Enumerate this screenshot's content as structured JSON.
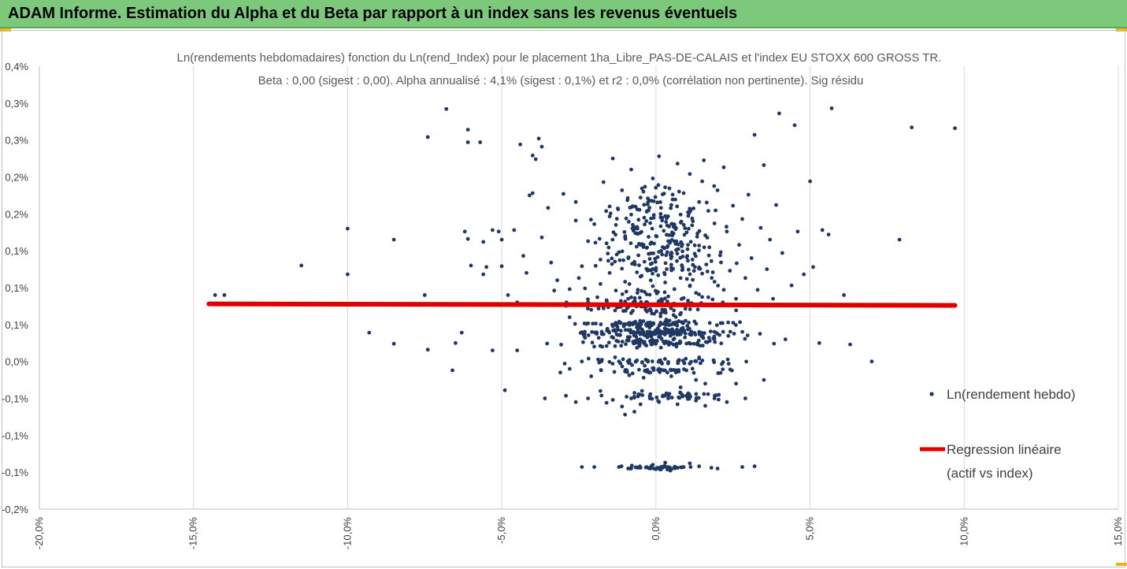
{
  "header": {
    "title": "ADAM Informe. Estimation du Alpha et du Beta par rapport à un index sans les revenus éventuels"
  },
  "colors": {
    "banner": "#7cc97c",
    "points": "#1f3864",
    "regression": "#e00000",
    "accent": "#f0b400"
  },
  "chart_data": {
    "type": "scatter",
    "title_line1": "Ln(rendements hebdomadaires) fonction du Ln(rend_Index)  pour le placement 1ha_Libre_PAS-DE-CALAIS et l'index EU STOXX 600 GROSS TR.",
    "title_line2": "Beta : 0,00 (sigest : 0,00).  Alpha annualisé : 4,1% (sigest : 0,1%) et r2 : 0,0% (corrélation non pertinente). Sig résidu",
    "xlim": [
      -20,
      15
    ],
    "ylim": [
      -0.2,
      0.4
    ],
    "x_ticks": [
      -20,
      -15,
      -10,
      -5,
      0,
      5,
      10,
      15
    ],
    "x_tick_labels": [
      "-20,0%",
      "-15,0%",
      "-10,0%",
      "-5,0%",
      "0,0%",
      "5,0%",
      "10,0%",
      "15,0%"
    ],
    "y_ticks": [
      0.4,
      0.35,
      0.3,
      0.25,
      0.2,
      0.15,
      0.1,
      0.05,
      0.0,
      -0.05,
      -0.1,
      -0.15,
      -0.2
    ],
    "y_tick_labels": [
      "0,4%",
      "0,3%",
      "0,3%",
      "0,2%",
      "0,2%",
      "0,1%",
      "0,1%",
      "0,1%",
      "0,0%",
      "-0,1%",
      "-0,1%",
      "-0,1%",
      "-0,2%"
    ],
    "grid": "vertical",
    "legend_position": "right",
    "series": [
      {
        "name": "Ln(rendement hebdo)",
        "type": "scatter"
      },
      {
        "name": "Regression linéaire\n(actif vs index)",
        "type": "line"
      }
    ],
    "regression": {
      "x": [
        -14.5,
        9.7
      ],
      "y": [
        0.078,
        0.076
      ]
    },
    "scatter_points": [
      {
        "x": -14.3,
        "y": 0.09
      },
      {
        "x": -14.0,
        "y": 0.09
      },
      {
        "x": -11.5,
        "y": 0.13
      },
      {
        "x": -10.0,
        "y": 0.18
      },
      {
        "x": -10.0,
        "y": 0.118
      },
      {
        "x": -9.3,
        "y": 0.039
      },
      {
        "x": -8.5,
        "y": 0.165
      },
      {
        "x": -8.5,
        "y": 0.024
      },
      {
        "x": -7.4,
        "y": 0.304
      },
      {
        "x": -7.4,
        "y": 0.016
      },
      {
        "x": -7.5,
        "y": 0.09
      },
      {
        "x": -6.8,
        "y": 0.342
      },
      {
        "x": -6.6,
        "y": -0.012
      },
      {
        "x": -6.5,
        "y": 0.025
      },
      {
        "x": -6.3,
        "y": 0.039
      },
      {
        "x": -6.2,
        "y": 0.176
      },
      {
        "x": -6.1,
        "y": 0.166
      },
      {
        "x": -6.1,
        "y": 0.314
      },
      {
        "x": -6.1,
        "y": 0.297
      },
      {
        "x": -6.0,
        "y": 0.13
      },
      {
        "x": -5.7,
        "y": 0.297
      },
      {
        "x": -5.6,
        "y": 0.162
      },
      {
        "x": -5.6,
        "y": 0.118
      },
      {
        "x": -5.5,
        "y": 0.128
      },
      {
        "x": -5.3,
        "y": 0.015
      },
      {
        "x": -5.3,
        "y": 0.178
      },
      {
        "x": -5.1,
        "y": 0.176
      },
      {
        "x": -5.0,
        "y": 0.129
      },
      {
        "x": -5.0,
        "y": 0.165
      },
      {
        "x": -4.9,
        "y": -0.039
      },
      {
        "x": -4.8,
        "y": 0.09
      },
      {
        "x": -4.6,
        "y": 0.178
      },
      {
        "x": -4.5,
        "y": 0.08
      },
      {
        "x": -4.5,
        "y": 0.015
      },
      {
        "x": -4.4,
        "y": 0.294
      },
      {
        "x": -4.3,
        "y": 0.143
      },
      {
        "x": -4.2,
        "y": 0.12
      },
      {
        "x": -4.1,
        "y": 0.225
      },
      {
        "x": -4.0,
        "y": 0.228
      },
      {
        "x": -4.0,
        "y": 0.279
      },
      {
        "x": -3.9,
        "y": 0.274
      },
      {
        "x": -3.8,
        "y": 0.302
      },
      {
        "x": -3.7,
        "y": 0.291
      },
      {
        "x": -3.7,
        "y": 0.168
      },
      {
        "x": -3.6,
        "y": -0.05
      },
      {
        "x": -3.5,
        "y": 0.208
      },
      {
        "x": -3.4,
        "y": 0.134
      },
      {
        "x": -3.3,
        "y": 0.096
      },
      {
        "x": -3.2,
        "y": 0.11
      },
      {
        "x": -3.0,
        "y": 0.227
      },
      {
        "x": -2.9,
        "y": 0.08
      },
      {
        "x": -2.8,
        "y": 0.06
      },
      {
        "x": -2.8,
        "y": 0.098
      },
      {
        "x": -2.6,
        "y": 0.216
      },
      {
        "x": -2.6,
        "y": 0.191
      },
      {
        "x": -2.5,
        "y": 0.113
      },
      {
        "x": -2.4,
        "y": 0.129
      },
      {
        "x": -2.3,
        "y": 0.099
      },
      {
        "x": -2.2,
        "y": 0.163
      },
      {
        "x": -2.2,
        "y": 0.08
      },
      {
        "x": -2.1,
        "y": 0.07
      },
      {
        "x": -2.0,
        "y": 0.186
      },
      {
        "x": -1.9,
        "y": 0.087
      },
      {
        "x": -1.8,
        "y": 0.138
      },
      {
        "x": -1.8,
        "y": 0.105
      },
      {
        "x": -1.7,
        "y": 0.243
      },
      {
        "x": -1.6,
        "y": 0.16
      },
      {
        "x": -1.6,
        "y": 0.083
      },
      {
        "x": -1.5,
        "y": 0.21
      },
      {
        "x": -1.5,
        "y": 0.12
      },
      {
        "x": -1.4,
        "y": 0.275
      },
      {
        "x": -1.3,
        "y": 0.185
      },
      {
        "x": -1.3,
        "y": 0.096
      },
      {
        "x": -1.2,
        "y": 0.148
      },
      {
        "x": -1.1,
        "y": 0.232
      },
      {
        "x": -1.0,
        "y": 0.108
      },
      {
        "x": -1.0,
        "y": 0.168
      },
      {
        "x": -0.9,
        "y": 0.085
      },
      {
        "x": -0.8,
        "y": 0.26
      },
      {
        "x": -0.8,
        "y": 0.199
      },
      {
        "x": -0.7,
        "y": 0.135
      },
      {
        "x": -0.6,
        "y": 0.18
      },
      {
        "x": -0.6,
        "y": 0.093
      },
      {
        "x": -0.5,
        "y": 0.222
      },
      {
        "x": -0.5,
        "y": 0.115
      },
      {
        "x": -0.4,
        "y": 0.158
      },
      {
        "x": -0.3,
        "y": 0.203
      },
      {
        "x": -0.3,
        "y": 0.075
      },
      {
        "x": -0.2,
        "y": 0.139
      },
      {
        "x": -0.1,
        "y": 0.248
      },
      {
        "x": -0.1,
        "y": 0.102
      },
      {
        "x": 0.0,
        "y": 0.17
      },
      {
        "x": 0.0,
        "y": 0.123
      },
      {
        "x": 0.1,
        "y": 0.278
      },
      {
        "x": 0.1,
        "y": 0.082
      },
      {
        "x": 0.2,
        "y": 0.191
      },
      {
        "x": 0.2,
        "y": 0.145
      },
      {
        "x": 0.3,
        "y": 0.107
      },
      {
        "x": 0.3,
        "y": 0.236
      },
      {
        "x": 0.4,
        "y": 0.163
      },
      {
        "x": 0.4,
        "y": 0.088
      },
      {
        "x": 0.5,
        "y": 0.212
      },
      {
        "x": 0.5,
        "y": 0.127
      },
      {
        "x": 0.6,
        "y": 0.183
      },
      {
        "x": 0.6,
        "y": 0.098
      },
      {
        "x": 0.7,
        "y": 0.268
      },
      {
        "x": 0.7,
        "y": 0.152
      },
      {
        "x": 0.8,
        "y": 0.113
      },
      {
        "x": 0.8,
        "y": 0.199
      },
      {
        "x": 0.9,
        "y": 0.086
      },
      {
        "x": 0.9,
        "y": 0.228
      },
      {
        "x": 1.0,
        "y": 0.141
      },
      {
        "x": 1.0,
        "y": 0.175
      },
      {
        "x": 1.1,
        "y": 0.102
      },
      {
        "x": 1.1,
        "y": 0.254
      },
      {
        "x": 1.2,
        "y": 0.131
      },
      {
        "x": 1.2,
        "y": 0.19
      },
      {
        "x": 1.3,
        "y": 0.093
      },
      {
        "x": 1.4,
        "y": 0.216
      },
      {
        "x": 1.4,
        "y": 0.157
      },
      {
        "x": 1.5,
        "y": 0.119
      },
      {
        "x": 1.5,
        "y": 0.244
      },
      {
        "x": 1.6,
        "y": 0.171
      },
      {
        "x": 1.7,
        "y": 0.087
      },
      {
        "x": 1.7,
        "y": 0.204
      },
      {
        "x": 1.8,
        "y": 0.136
      },
      {
        "x": 1.9,
        "y": 0.187
      },
      {
        "x": 1.9,
        "y": 0.108
      },
      {
        "x": 2.0,
        "y": 0.232
      },
      {
        "x": 2.1,
        "y": 0.148
      },
      {
        "x": 2.2,
        "y": 0.097
      },
      {
        "x": 2.2,
        "y": 0.263
      },
      {
        "x": 2.3,
        "y": 0.176
      },
      {
        "x": 2.4,
        "y": 0.123
      },
      {
        "x": 2.5,
        "y": 0.211
      },
      {
        "x": 2.6,
        "y": 0.085
      },
      {
        "x": 2.7,
        "y": 0.158
      },
      {
        "x": 2.8,
        "y": 0.193
      },
      {
        "x": 2.9,
        "y": 0.113
      },
      {
        "x": 3.0,
        "y": 0.226
      },
      {
        "x": 3.1,
        "y": 0.14
      },
      {
        "x": 3.2,
        "y": 0.307
      },
      {
        "x": 3.3,
        "y": 0.097
      },
      {
        "x": 3.4,
        "y": 0.181
      },
      {
        "x": 3.5,
        "y": 0.266
      },
      {
        "x": 3.6,
        "y": 0.125
      },
      {
        "x": 3.7,
        "y": 0.165
      },
      {
        "x": 3.8,
        "y": 0.085
      },
      {
        "x": 3.9,
        "y": 0.212
      },
      {
        "x": 4.0,
        "y": 0.336
      },
      {
        "x": 4.1,
        "y": 0.147
      },
      {
        "x": 4.2,
        "y": 0.03
      },
      {
        "x": 4.4,
        "y": 0.103
      },
      {
        "x": 4.5,
        "y": 0.32
      },
      {
        "x": 4.6,
        "y": 0.176
      },
      {
        "x": 4.8,
        "y": 0.118
      },
      {
        "x": 5.0,
        "y": 0.244
      },
      {
        "x": 5.1,
        "y": 0.128
      },
      {
        "x": 5.3,
        "y": 0.025
      },
      {
        "x": 5.4,
        "y": 0.178
      },
      {
        "x": 5.6,
        "y": 0.172
      },
      {
        "x": 5.7,
        "y": 0.343
      },
      {
        "x": 6.1,
        "y": 0.09
      },
      {
        "x": 6.3,
        "y": 0.023
      },
      {
        "x": 7.0,
        "y": 0.0
      },
      {
        "x": 7.9,
        "y": 0.165
      },
      {
        "x": 8.3,
        "y": 0.317
      },
      {
        "x": 9.7,
        "y": 0.316
      },
      {
        "x": -2.4,
        "y": -0.143
      },
      {
        "x": -2.0,
        "y": -0.143
      },
      {
        "x": -1.2,
        "y": -0.143
      },
      {
        "x": -0.8,
        "y": -0.145
      },
      {
        "x": -0.5,
        "y": -0.144
      },
      {
        "x": -0.3,
        "y": -0.143
      },
      {
        "x": -0.1,
        "y": -0.14
      },
      {
        "x": 0.0,
        "y": -0.146
      },
      {
        "x": 0.2,
        "y": -0.144
      },
      {
        "x": 0.4,
        "y": -0.143
      },
      {
        "x": 0.5,
        "y": -0.146
      },
      {
        "x": 0.7,
        "y": -0.144
      },
      {
        "x": 0.9,
        "y": -0.143
      },
      {
        "x": 1.1,
        "y": -0.138
      },
      {
        "x": 1.4,
        "y": -0.142
      },
      {
        "x": 1.8,
        "y": -0.144
      },
      {
        "x": 2.0,
        "y": -0.145
      },
      {
        "x": 2.8,
        "y": -0.143
      },
      {
        "x": 3.2,
        "y": -0.142
      },
      {
        "x": -0.9,
        "y": -0.145
      },
      {
        "x": 0.3,
        "y": -0.137
      },
      {
        "x": -1.6,
        "y": -0.056
      },
      {
        "x": -1.4,
        "y": -0.052
      },
      {
        "x": -1.1,
        "y": -0.061
      },
      {
        "x": -0.8,
        "y": -0.05
      },
      {
        "x": -0.5,
        "y": -0.058
      },
      {
        "x": -0.2,
        "y": -0.047
      },
      {
        "x": 0.1,
        "y": -0.055
      },
      {
        "x": 0.4,
        "y": -0.05
      },
      {
        "x": 0.7,
        "y": -0.058
      },
      {
        "x": 1.0,
        "y": -0.046
      },
      {
        "x": 1.3,
        "y": -0.053
      },
      {
        "x": 1.6,
        "y": -0.06
      },
      {
        "x": 1.9,
        "y": -0.05
      },
      {
        "x": 2.3,
        "y": -0.055
      },
      {
        "x": -2.2,
        "y": -0.05
      },
      {
        "x": -2.6,
        "y": -0.055
      },
      {
        "x": -1.8,
        "y": -0.04
      },
      {
        "x": 2.9,
        "y": -0.05
      },
      {
        "x": -1.0,
        "y": -0.072
      },
      {
        "x": -0.7,
        "y": -0.068
      },
      {
        "x": 3.5,
        "y": -0.025
      },
      {
        "x": 0.5,
        "y": -0.02
      },
      {
        "x": 1.3,
        "y": -0.025
      },
      {
        "x": -0.4,
        "y": -0.022
      },
      {
        "x": 2.6,
        "y": -0.03
      },
      {
        "x": -2.8,
        "y": -0.01
      },
      {
        "x": -3.1,
        "y": -0.015
      },
      {
        "x": -2.1,
        "y": -0.02
      },
      {
        "x": 0.8,
        "y": -0.035
      },
      {
        "x": 1.6,
        "y": -0.03
      }
    ],
    "clusters": [
      {
        "cx": 0.0,
        "cy": 0.038,
        "sx": 1.8,
        "sy": 0.004,
        "n": 160
      },
      {
        "cx": 0.0,
        "cy": 0.051,
        "sx": 1.5,
        "sy": 0.003,
        "n": 90
      },
      {
        "cx": 0.0,
        "cy": 0.025,
        "sx": 1.9,
        "sy": 0.004,
        "n": 80
      },
      {
        "cx": 0.0,
        "cy": 0.0,
        "sx": 1.7,
        "sy": 0.004,
        "n": 60
      },
      {
        "cx": 0.0,
        "cy": -0.012,
        "sx": 1.6,
        "sy": 0.004,
        "n": 45
      },
      {
        "cx": 0.0,
        "cy": -0.046,
        "sx": 1.4,
        "sy": 0.004,
        "n": 45
      },
      {
        "cx": 0.0,
        "cy": 0.076,
        "sx": 1.6,
        "sy": 0.012,
        "n": 90
      },
      {
        "cx": 0.2,
        "cy": 0.16,
        "sx": 1.3,
        "sy": 0.055,
        "n": 260
      },
      {
        "cx": 0.0,
        "cy": -0.143,
        "sx": 0.7,
        "sy": 0.003,
        "n": 35
      }
    ]
  },
  "legend": {
    "scatter_label": "Ln(rendement hebdo)",
    "line_label_1": "Regression linéaire",
    "line_label_2": "(actif vs index)"
  }
}
